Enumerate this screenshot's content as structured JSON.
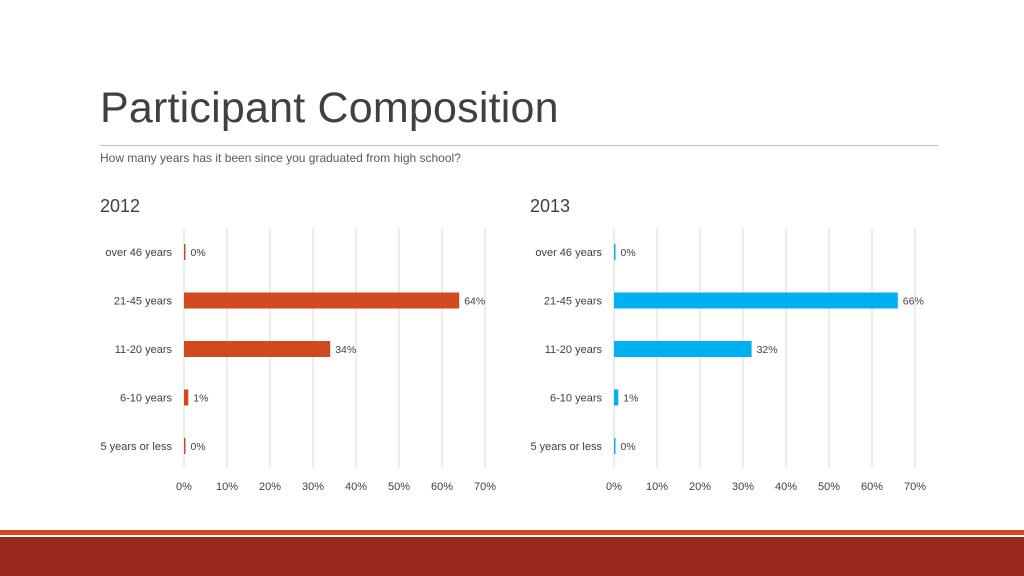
{
  "title": "Participant Composition",
  "subtitle": "How many years has it been since you graduated from high school?",
  "colors": {
    "bar_2012": "#d04a1e",
    "bar_2013": "#00b0f0",
    "gridline": "#d9d9d9",
    "footer_thin": "#d04a1e",
    "footer_band": "#9a2a1f"
  },
  "chart_data": [
    {
      "type": "bar",
      "orientation": "horizontal",
      "title": "2012",
      "categories": [
        "over 46 years",
        "21-45 years",
        "11-20 years",
        "6-10 years",
        "5 years or less"
      ],
      "values": [
        0,
        64,
        34,
        1,
        0
      ],
      "value_labels": [
        "0%",
        "64%",
        "34%",
        "1%",
        "0%"
      ],
      "xlim": [
        0,
        70
      ],
      "x_ticks": [
        "0%",
        "10%",
        "20%",
        "30%",
        "40%",
        "50%",
        "60%",
        "70%"
      ],
      "grid": true,
      "color": "#d04a1e"
    },
    {
      "type": "bar",
      "orientation": "horizontal",
      "title": "2013",
      "categories": [
        "over 46 years",
        "21-45 years",
        "11-20 years",
        "6-10 years",
        "5 years or less"
      ],
      "values": [
        0,
        66,
        32,
        1,
        0
      ],
      "value_labels": [
        "0%",
        "66%",
        "32%",
        "1%",
        "0%"
      ],
      "xlim": [
        0,
        70
      ],
      "x_ticks": [
        "0%",
        "10%",
        "20%",
        "30%",
        "40%",
        "50%",
        "60%",
        "70%"
      ],
      "grid": true,
      "color": "#00b0f0"
    }
  ]
}
